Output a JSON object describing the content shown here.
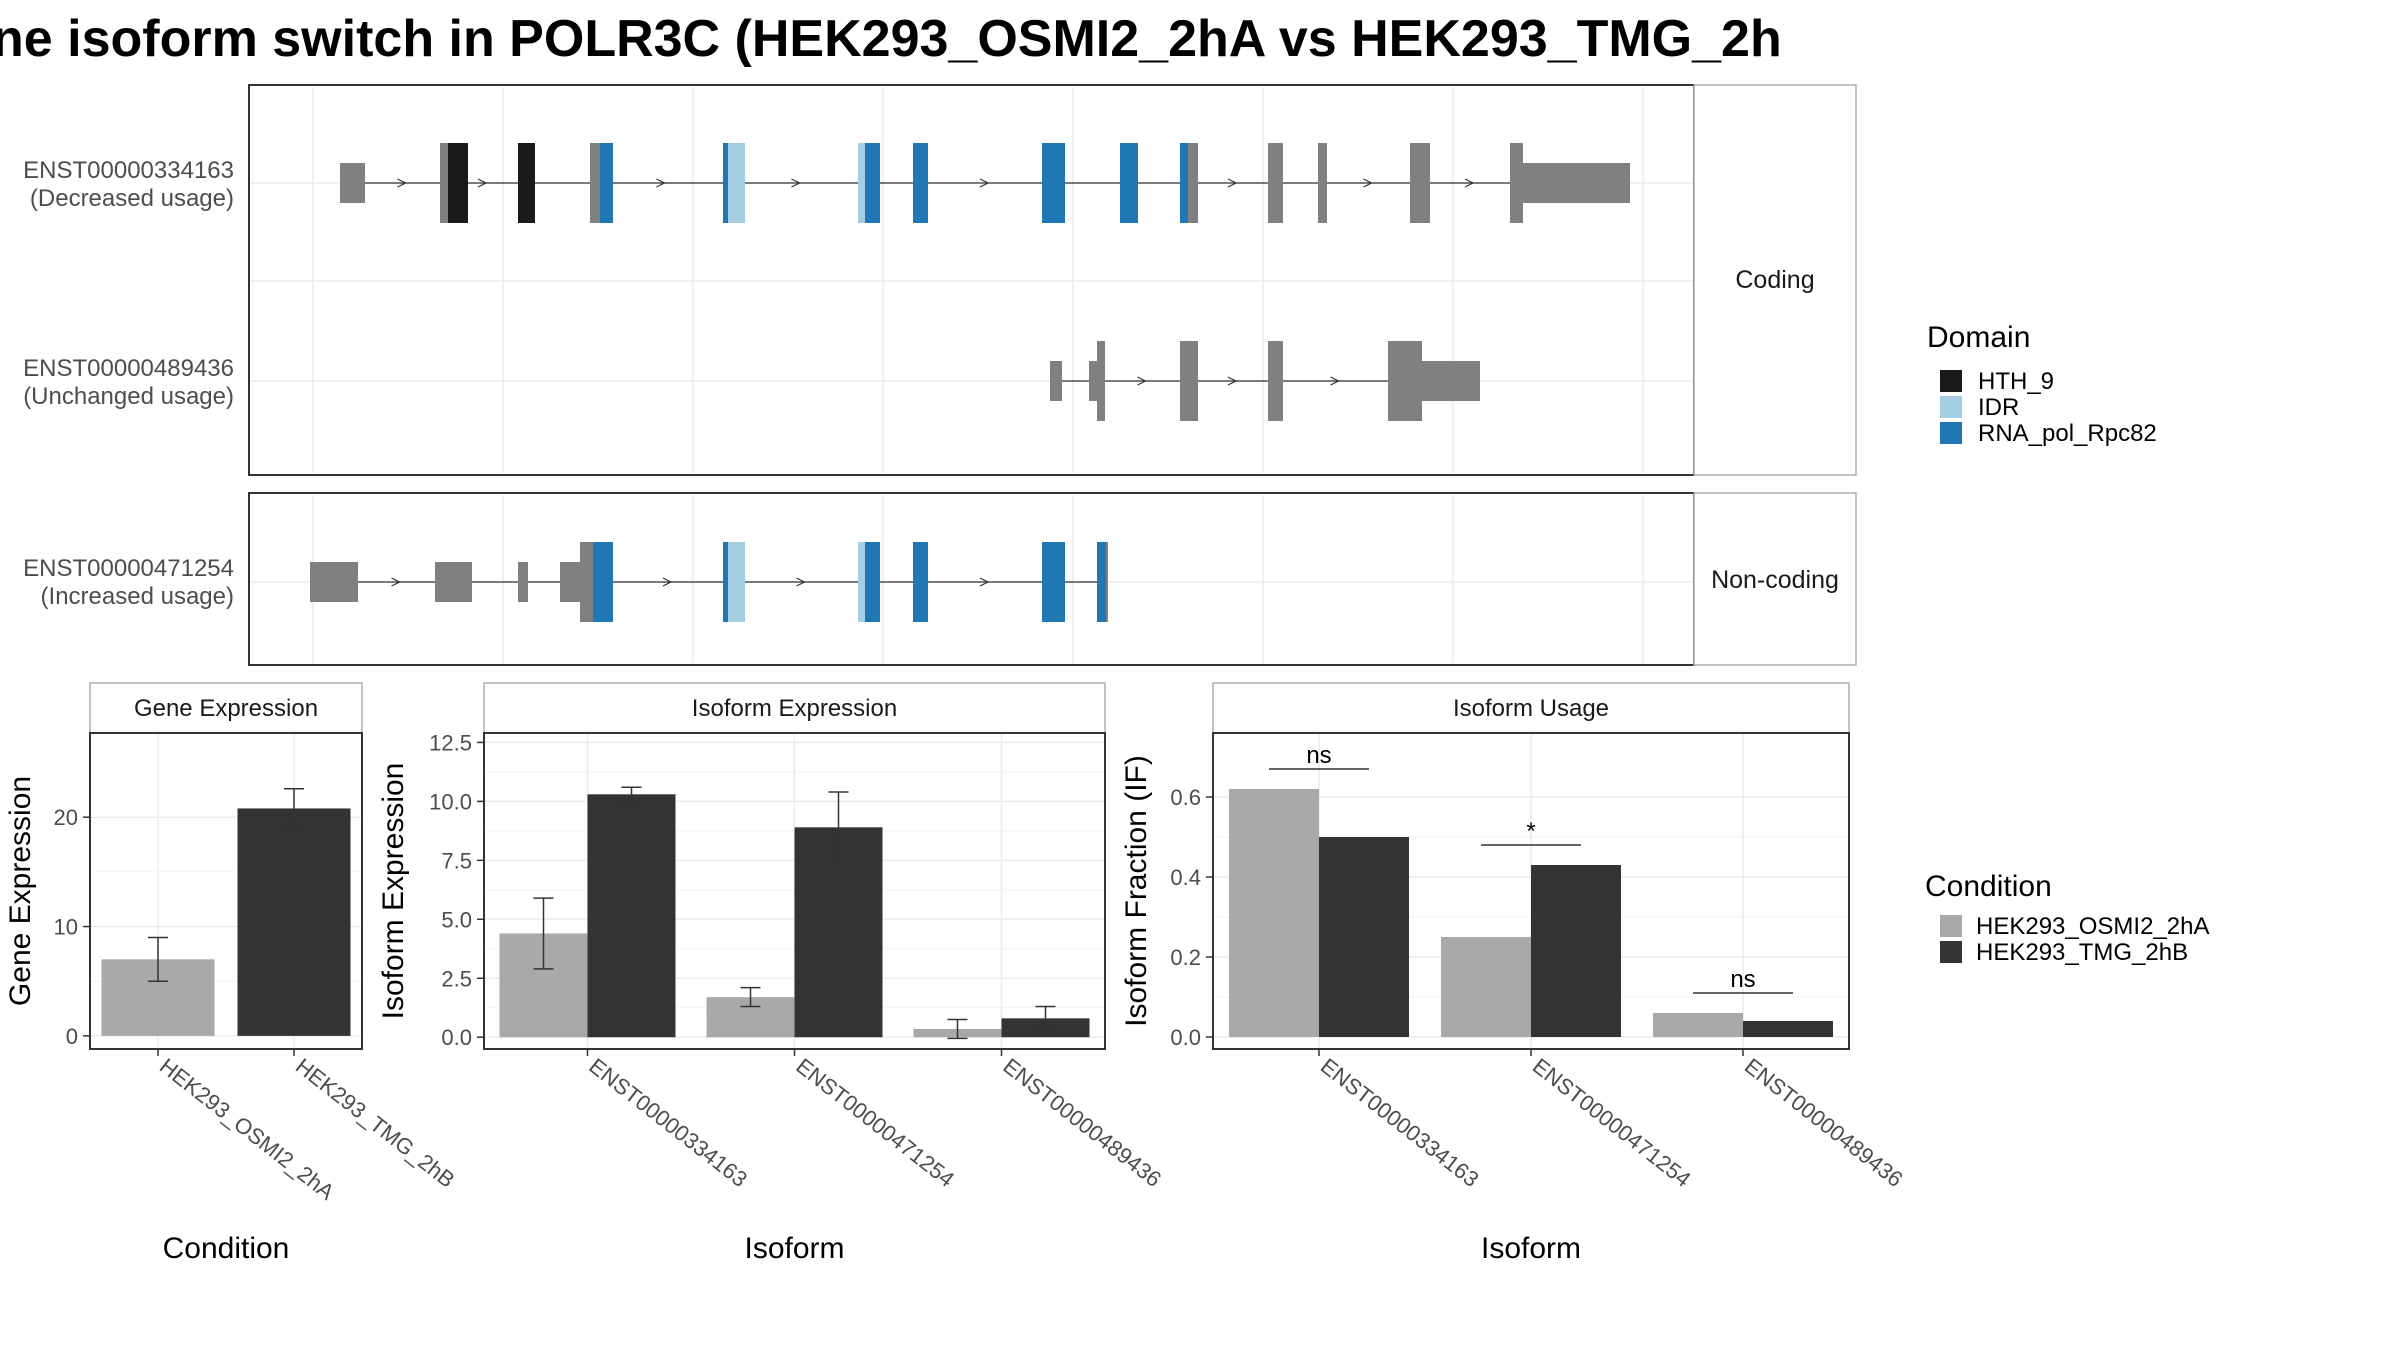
{
  "title": "ne isoform switch in POLR3C (HEK293_OSMI2_2hA vs HEK293_TMG_2h",
  "colors": {
    "exon": "#808080",
    "HTH_9": "#1a1a1a",
    "IDR": "#a6cee3",
    "RNA_pol_Rpc82": "#1f78b4",
    "cond_a": "#a9a9a9",
    "cond_b": "#333333",
    "strip_bg": "#ffffff",
    "grid": "#ebebeb"
  },
  "structure": {
    "coding_strip": "Coding",
    "noncoding_strip": "Non-coding",
    "coding": [
      {
        "id": "ENST00000334163",
        "note": "(Decreased usage)",
        "exons": [
          {
            "s": 0,
            "e": 25,
            "h": "thin"
          },
          {
            "s": 100,
            "e": 108,
            "h": "thick"
          },
          {
            "s": 178,
            "e": 195,
            "h": "thick"
          },
          {
            "s": 250,
            "e": 260,
            "h": "thick"
          },
          {
            "s": 383,
            "e": 395,
            "h": "thick"
          },
          {
            "s": 518,
            "e": 530,
            "h": "thick"
          },
          {
            "s": 573,
            "e": 588,
            "h": "thick"
          },
          {
            "s": 702,
            "e": 725,
            "h": "thick"
          },
          {
            "s": 780,
            "e": 798,
            "h": "thick"
          },
          {
            "s": 840,
            "e": 858,
            "h": "thick"
          },
          {
            "s": 928,
            "e": 943,
            "h": "thick"
          },
          {
            "s": 978,
            "e": 987,
            "h": "thick"
          },
          {
            "s": 1070,
            "e": 1090,
            "h": "thick"
          },
          {
            "s": 1170,
            "e": 1183,
            "h": "thick"
          },
          {
            "s": 1183,
            "e": 1290,
            "h": "thin"
          }
        ],
        "domains": [
          {
            "name": "HTH_9",
            "s": 108,
            "e": 128
          },
          {
            "name": "HTH_9",
            "s": 178,
            "e": 195
          },
          {
            "name": "RNA_pol_Rpc82",
            "s": 260,
            "e": 273
          },
          {
            "name": "RNA_pol_Rpc82",
            "s": 383,
            "e": 388
          },
          {
            "name": "IDR",
            "s": 388,
            "e": 405
          },
          {
            "name": "IDR",
            "s": 518,
            "e": 525
          },
          {
            "name": "RNA_pol_Rpc82",
            "s": 525,
            "e": 540
          },
          {
            "name": "RNA_pol_Rpc82",
            "s": 573,
            "e": 588
          },
          {
            "name": "RNA_pol_Rpc82",
            "s": 702,
            "e": 725
          },
          {
            "name": "RNA_pol_Rpc82",
            "s": 780,
            "e": 798
          },
          {
            "name": "RNA_pol_Rpc82",
            "s": 840,
            "e": 848
          }
        ]
      },
      {
        "id": "ENST00000489436",
        "note": "(Unchanged usage)",
        "exons": [
          {
            "s": 710,
            "e": 722,
            "h": "thin"
          },
          {
            "s": 749,
            "e": 757,
            "h": "thin"
          },
          {
            "s": 757,
            "e": 765,
            "h": "thick"
          },
          {
            "s": 840,
            "e": 858,
            "h": "thick"
          },
          {
            "s": 928,
            "e": 943,
            "h": "thick"
          },
          {
            "s": 1048,
            "e": 1082,
            "h": "thick"
          },
          {
            "s": 1082,
            "e": 1140,
            "h": "thin"
          }
        ],
        "domains": []
      }
    ],
    "noncoding": [
      {
        "id": "ENST00000471254",
        "note": "(Increased usage)",
        "exons": [
          {
            "s": -30,
            "e": 18,
            "h": "thin"
          },
          {
            "s": 95,
            "e": 132,
            "h": "thin"
          },
          {
            "s": 178,
            "e": 188,
            "h": "thin"
          },
          {
            "s": 220,
            "e": 240,
            "h": "thin"
          },
          {
            "s": 240,
            "e": 253,
            "h": "thick"
          },
          {
            "s": 253,
            "e": 273,
            "h": "thick"
          },
          {
            "s": 383,
            "e": 405,
            "h": "thick"
          },
          {
            "s": 518,
            "e": 540,
            "h": "thick"
          },
          {
            "s": 573,
            "e": 588,
            "h": "thick"
          },
          {
            "s": 702,
            "e": 725,
            "h": "thick"
          },
          {
            "s": 757,
            "e": 768,
            "h": "thick"
          }
        ],
        "domains": [
          {
            "name": "RNA_pol_Rpc82",
            "s": 253,
            "e": 273
          },
          {
            "name": "RNA_pol_Rpc82",
            "s": 383,
            "e": 388
          },
          {
            "name": "IDR",
            "s": 388,
            "e": 405
          },
          {
            "name": "IDR",
            "s": 518,
            "e": 525
          },
          {
            "name": "RNA_pol_Rpc82",
            "s": 525,
            "e": 540
          },
          {
            "name": "RNA_pol_Rpc82",
            "s": 573,
            "e": 588
          },
          {
            "name": "RNA_pol_Rpc82",
            "s": 702,
            "e": 725
          },
          {
            "name": "RNA_pol_Rpc82",
            "s": 757,
            "e": 766
          }
        ]
      }
    ],
    "legend_title": "Domain",
    "legend_items": [
      "HTH_9",
      "IDR",
      "RNA_pol_Rpc82"
    ]
  },
  "chart_data": [
    {
      "type": "bar",
      "title": "Gene Expression",
      "xlabel": "Condition",
      "ylabel": "Gene Expression",
      "categories": [
        "HEK293_OSMI2_2hA",
        "HEK293_TMG_2hB"
      ],
      "values": [
        7.0,
        20.8
      ],
      "errors": [
        2.0,
        1.8
      ],
      "ylim": [
        -1.2,
        27.7
      ],
      "yticks": [
        0,
        10,
        20
      ],
      "ytick_labels": [
        "0",
        "10",
        "20"
      ]
    },
    {
      "type": "bar",
      "title": "Isoform Expression",
      "xlabel": "Isoform",
      "ylabel": "Isoform Expression",
      "categories": [
        "ENST00000334163",
        "ENST00000471254",
        "ENST00000489436"
      ],
      "series": [
        {
          "name": "HEK293_OSMI2_2hA",
          "values": [
            4.4,
            1.7,
            0.35
          ],
          "errors": [
            1.5,
            0.4,
            0.4
          ]
        },
        {
          "name": "HEK293_TMG_2hB",
          "values": [
            10.3,
            8.9,
            0.8
          ],
          "errors": [
            0.3,
            1.5,
            0.5
          ]
        }
      ],
      "ylim": [
        -0.5,
        12.9
      ],
      "yticks": [
        0,
        2.5,
        5,
        7.5,
        10,
        12.5
      ],
      "ytick_labels": [
        "0.0",
        "2.5",
        "5.0",
        "7.5",
        "10.0",
        "12.5"
      ]
    },
    {
      "type": "bar",
      "title": "Isoform Usage",
      "xlabel": "Isoform",
      "ylabel": "Isoform Fraction (IF)",
      "categories": [
        "ENST00000334163",
        "ENST00000471254",
        "ENST00000489436"
      ],
      "series": [
        {
          "name": "HEK293_OSMI2_2hA",
          "values": [
            0.62,
            0.25,
            0.06
          ]
        },
        {
          "name": "HEK293_TMG_2hB",
          "values": [
            0.5,
            0.43,
            0.04
          ]
        }
      ],
      "significance": [
        "ns",
        "*",
        "ns"
      ],
      "ylim": [
        -0.03,
        0.76
      ],
      "yticks": [
        0,
        0.2,
        0.4,
        0.6
      ],
      "ytick_labels": [
        "0.0",
        "0.2",
        "0.4",
        "0.6"
      ]
    }
  ],
  "condition_legend": {
    "title": "Condition",
    "items": [
      "HEK293_OSMI2_2hA",
      "HEK293_TMG_2hB"
    ]
  }
}
